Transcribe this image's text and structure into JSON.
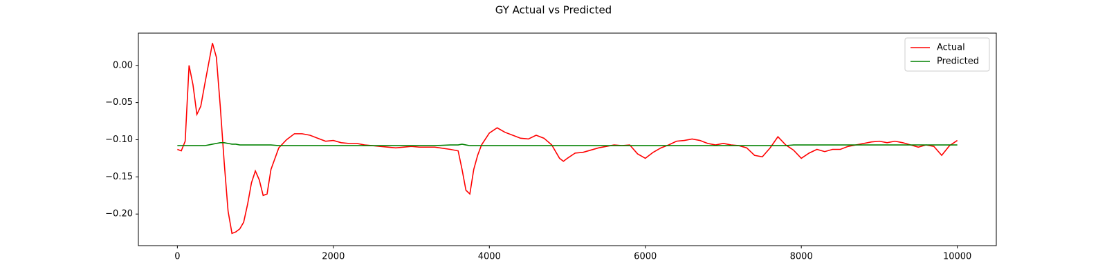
{
  "chart_data": {
    "type": "line",
    "title": "GY Actual vs Predicted",
    "x": [
      0,
      50,
      100,
      150,
      200,
      250,
      300,
      350,
      400,
      450,
      500,
      550,
      600,
      650,
      700,
      750,
      800,
      850,
      900,
      950,
      1000,
      1050,
      1100,
      1150,
      1200,
      1300,
      1400,
      1500,
      1600,
      1700,
      1800,
      1900,
      2000,
      2100,
      2200,
      2300,
      2400,
      2500,
      2600,
      2800,
      3000,
      3100,
      3300,
      3500,
      3600,
      3650,
      3700,
      3750,
      3800,
      3850,
      3900,
      4000,
      4100,
      4200,
      4300,
      4400,
      4500,
      4600,
      4700,
      4800,
      4900,
      4950,
      5000,
      5100,
      5200,
      5300,
      5400,
      5500,
      5600,
      5700,
      5800,
      5900,
      6000,
      6100,
      6200,
      6300,
      6400,
      6500,
      6600,
      6700,
      6800,
      6900,
      7000,
      7100,
      7200,
      7300,
      7400,
      7500,
      7600,
      7700,
      7800,
      7900,
      8000,
      8100,
      8200,
      8300,
      8400,
      8500,
      8600,
      8700,
      8800,
      8900,
      9000,
      9100,
      9200,
      9300,
      9400,
      9500,
      9600,
      9700,
      9800,
      9900,
      10000
    ],
    "series": [
      {
        "name": "Actual",
        "color": "#ff0000",
        "values": [
          -0.113,
          -0.115,
          -0.102,
          0.0,
          -0.026,
          -0.066,
          -0.055,
          -0.026,
          0.002,
          0.03,
          0.011,
          -0.055,
          -0.13,
          -0.196,
          -0.226,
          -0.224,
          -0.22,
          -0.211,
          -0.187,
          -0.158,
          -0.142,
          -0.154,
          -0.175,
          -0.173,
          -0.14,
          -0.111,
          -0.1,
          -0.092,
          -0.092,
          -0.094,
          -0.098,
          -0.102,
          -0.101,
          -0.104,
          -0.105,
          -0.105,
          -0.107,
          -0.108,
          -0.109,
          -0.111,
          -0.109,
          -0.11,
          -0.11,
          -0.113,
          -0.115,
          -0.14,
          -0.168,
          -0.173,
          -0.14,
          -0.121,
          -0.107,
          -0.091,
          -0.084,
          -0.09,
          -0.094,
          -0.098,
          -0.099,
          -0.094,
          -0.098,
          -0.107,
          -0.125,
          -0.129,
          -0.125,
          -0.118,
          -0.117,
          -0.114,
          -0.111,
          -0.109,
          -0.107,
          -0.108,
          -0.107,
          -0.119,
          -0.125,
          -0.117,
          -0.111,
          -0.107,
          -0.102,
          -0.101,
          -0.099,
          -0.101,
          -0.105,
          -0.107,
          -0.105,
          -0.107,
          -0.108,
          -0.111,
          -0.121,
          -0.123,
          -0.111,
          -0.096,
          -0.107,
          -0.114,
          -0.125,
          -0.118,
          -0.113,
          -0.116,
          -0.113,
          -0.113,
          -0.109,
          -0.107,
          -0.105,
          -0.103,
          -0.102,
          -0.104,
          -0.102,
          -0.104,
          -0.107,
          -0.11,
          -0.107,
          -0.109,
          -0.121,
          -0.108,
          -0.101
        ]
      },
      {
        "name": "Predicted",
        "color": "#008000",
        "values": [
          -0.108,
          -0.108,
          -0.108,
          -0.108,
          -0.108,
          -0.108,
          -0.108,
          -0.108,
          -0.107,
          -0.106,
          -0.105,
          -0.104,
          -0.104,
          -0.105,
          -0.106,
          -0.106,
          -0.107,
          -0.107,
          -0.107,
          -0.107,
          -0.107,
          -0.107,
          -0.107,
          -0.107,
          -0.107,
          -0.108,
          -0.108,
          -0.108,
          -0.108,
          -0.108,
          -0.108,
          -0.108,
          -0.108,
          -0.108,
          -0.108,
          -0.108,
          -0.108,
          -0.108,
          -0.108,
          -0.108,
          -0.108,
          -0.108,
          -0.108,
          -0.107,
          -0.107,
          -0.106,
          -0.107,
          -0.108,
          -0.108,
          -0.108,
          -0.108,
          -0.108,
          -0.108,
          -0.108,
          -0.108,
          -0.108,
          -0.108,
          -0.108,
          -0.108,
          -0.108,
          -0.108,
          -0.108,
          -0.108,
          -0.108,
          -0.108,
          -0.108,
          -0.108,
          -0.108,
          -0.108,
          -0.108,
          -0.108,
          -0.108,
          -0.108,
          -0.108,
          -0.108,
          -0.108,
          -0.108,
          -0.108,
          -0.108,
          -0.108,
          -0.108,
          -0.108,
          -0.108,
          -0.108,
          -0.108,
          -0.108,
          -0.108,
          -0.108,
          -0.108,
          -0.108,
          -0.108,
          -0.107,
          -0.107,
          -0.107,
          -0.107,
          -0.107,
          -0.107,
          -0.107,
          -0.107,
          -0.107,
          -0.107,
          -0.107,
          -0.107,
          -0.107,
          -0.107,
          -0.107,
          -0.107,
          -0.107,
          -0.107,
          -0.107,
          -0.107,
          -0.107,
          -0.107
        ]
      }
    ],
    "xlim": [
      -500,
      10500
    ],
    "xticks": [
      0,
      2000,
      4000,
      6000,
      8000,
      10000
    ],
    "ylim": [
      -0.2425,
      0.0434
    ],
    "yticks": [
      {
        "value": 0,
        "label": "0.00"
      },
      {
        "value": -0.05,
        "label": "−0.05"
      },
      {
        "value": -0.1,
        "label": "−0.10"
      },
      {
        "value": -0.15,
        "label": "−0.15"
      },
      {
        "value": -0.2,
        "label": "−0.20"
      }
    ],
    "legend": "upper right"
  }
}
